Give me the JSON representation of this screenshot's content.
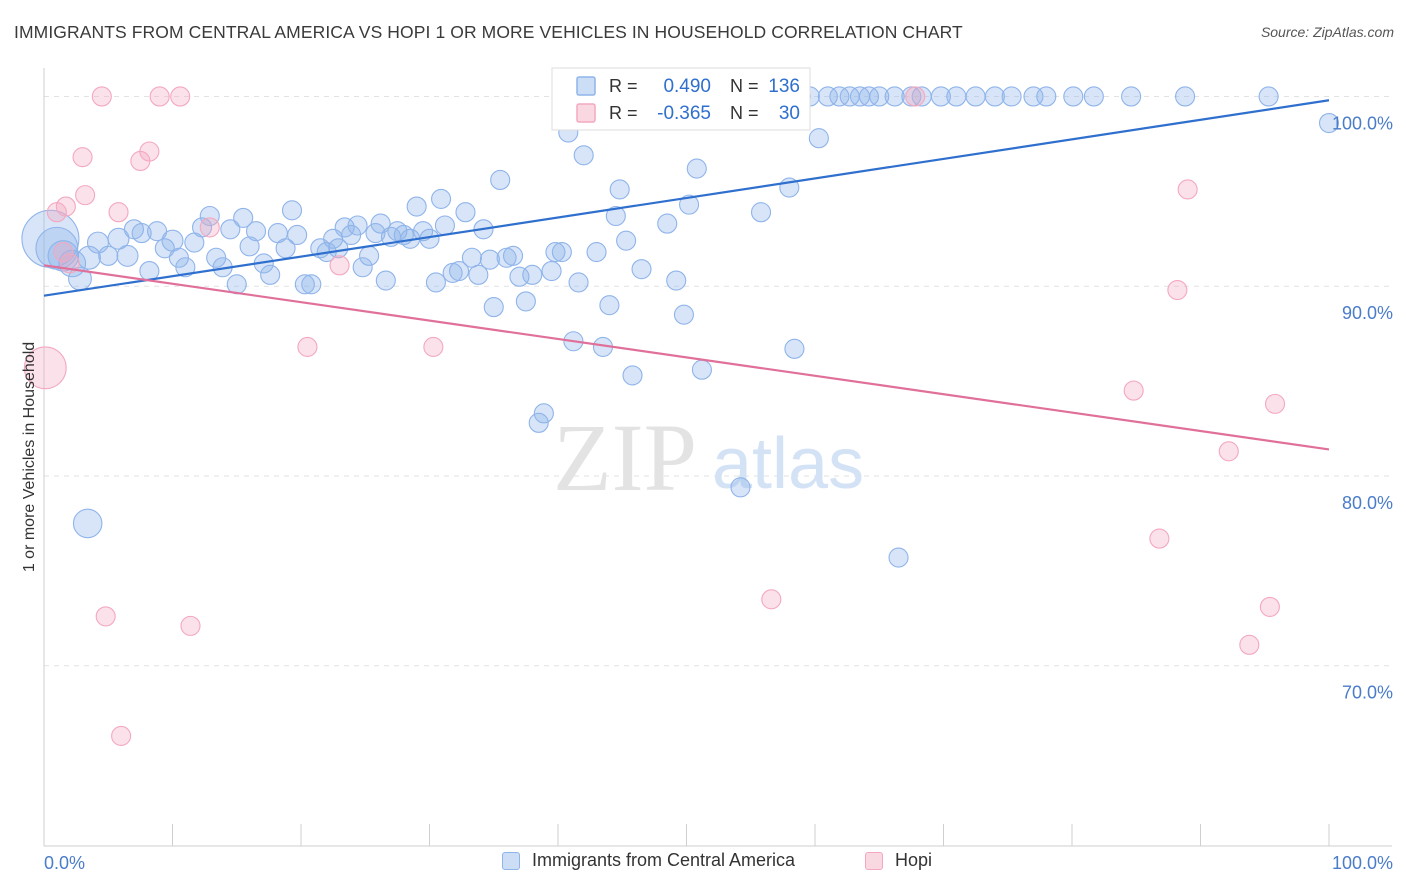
{
  "header": {
    "title": "IMMIGRANTS FROM CENTRAL AMERICA VS HOPI 1 OR MORE VEHICLES IN HOUSEHOLD CORRELATION CHART",
    "source": "Source: ZipAtlas.com"
  },
  "watermark": {
    "zip": "ZIP",
    "atlas": "atlas"
  },
  "stats_box": {
    "rows": [
      {
        "r_label": "R =",
        "r_value": "0.490",
        "n_label": "N =",
        "n_value": "136",
        "color": "#8fb4ea"
      },
      {
        "r_label": "R =",
        "r_value": "-0.365",
        "n_label": "N =",
        "n_value": "30",
        "color": "#f4a8bf"
      }
    ]
  },
  "legend": {
    "items": [
      {
        "label": "Immigrants from Central America",
        "color": "#8fb4ea"
      },
      {
        "label": "Hopi",
        "color": "#f4a8bf"
      }
    ]
  },
  "chart_data": {
    "type": "scatter",
    "xlabel": "",
    "ylabel": "1 or more Vehicles in Household",
    "xlim": [
      0,
      100
    ],
    "ylim": [
      60.5,
      101.5
    ],
    "x_tick_labels": [
      "0.0%",
      "100.0%"
    ],
    "y_ticks": [
      {
        "value": 70,
        "label": "70.0%"
      },
      {
        "value": 80,
        "label": "80.0%"
      },
      {
        "value": 90,
        "label": "90.0%"
      },
      {
        "value": 100,
        "label": "100.0%"
      }
    ],
    "grid": true,
    "series": [
      {
        "name": "Immigrants from Central America",
        "color": "#8fb4ea",
        "trend_color": "#2f6fce",
        "trend": {
          "x": [
            0,
            100
          ],
          "y": [
            89.5,
            99.8
          ]
        },
        "points": [
          [
            0.5,
            92.5,
            3
          ],
          [
            1.0,
            92.0,
            2.2
          ],
          [
            1.5,
            91.6,
            1.6
          ],
          [
            2.2,
            91.2,
            1.4
          ],
          [
            2.8,
            90.4,
            1.2
          ],
          [
            3.5,
            91.5,
            1.2
          ],
          [
            4.2,
            92.3,
            1.1
          ],
          [
            5.0,
            91.6,
            1.0
          ],
          [
            5.8,
            92.5,
            1.1
          ],
          [
            6.5,
            91.6,
            1.1
          ],
          [
            7.0,
            93.0,
            1.0
          ],
          [
            7.6,
            92.8,
            1.0
          ],
          [
            8.2,
            90.8,
            1.0
          ],
          [
            8.8,
            92.9,
            1.0
          ],
          [
            9.4,
            92.0,
            1.0
          ],
          [
            10.0,
            92.4,
            1.1
          ],
          [
            10.5,
            91.5,
            1.0
          ],
          [
            11.0,
            91.0,
            1.0
          ],
          [
            11.7,
            92.3,
            1.0
          ],
          [
            12.3,
            93.1,
            1.0
          ],
          [
            12.9,
            93.7,
            1.0
          ],
          [
            13.4,
            91.5,
            1.0
          ],
          [
            13.9,
            91.0,
            1.0
          ],
          [
            14.5,
            93.0,
            1.0
          ],
          [
            15.0,
            90.1,
            1.0
          ],
          [
            15.5,
            93.6,
            1.0
          ],
          [
            16.0,
            92.1,
            1.0
          ],
          [
            16.5,
            92.9,
            1.0
          ],
          [
            17.1,
            91.2,
            1.0
          ],
          [
            17.6,
            90.6,
            1.0
          ],
          [
            18.2,
            92.8,
            1.0
          ],
          [
            18.8,
            92.0,
            1.0
          ],
          [
            19.3,
            94.0,
            1.0
          ],
          [
            19.7,
            92.7,
            1.0
          ],
          [
            20.3,
            90.1,
            1.0
          ],
          [
            20.8,
            90.1,
            1.0
          ],
          [
            21.5,
            92.0,
            1.0
          ],
          [
            22.0,
            91.8,
            1.0
          ],
          [
            22.5,
            92.5,
            1.0
          ],
          [
            22.9,
            92.0,
            1.0
          ],
          [
            23.4,
            93.1,
            1.0
          ],
          [
            23.9,
            92.7,
            1.0
          ],
          [
            24.4,
            93.2,
            1.0
          ],
          [
            24.8,
            91.0,
            1.0
          ],
          [
            25.3,
            91.6,
            1.0
          ],
          [
            25.8,
            92.8,
            1.0
          ],
          [
            26.2,
            93.3,
            1.0
          ],
          [
            26.6,
            90.3,
            1.0
          ],
          [
            27.0,
            92.6,
            1.0
          ],
          [
            27.5,
            92.9,
            1.0
          ],
          [
            28.0,
            92.7,
            1.0
          ],
          [
            28.5,
            92.5,
            1.0
          ],
          [
            29.0,
            94.2,
            1.0
          ],
          [
            29.5,
            92.9,
            1.0
          ],
          [
            30.0,
            92.5,
            1.0
          ],
          [
            30.5,
            90.2,
            1.0
          ],
          [
            30.9,
            94.6,
            1.0
          ],
          [
            31.2,
            93.2,
            1.0
          ],
          [
            31.8,
            90.7,
            1.0
          ],
          [
            32.3,
            90.8,
            1.0
          ],
          [
            32.8,
            93.9,
            1.0
          ],
          [
            33.3,
            91.5,
            1.0
          ],
          [
            33.8,
            90.6,
            1.0
          ],
          [
            34.2,
            93.0,
            1.0
          ],
          [
            34.7,
            91.4,
            1.0
          ],
          [
            35.0,
            88.9,
            1.0
          ],
          [
            35.5,
            95.6,
            1.0
          ],
          [
            36.0,
            91.5,
            1.0
          ],
          [
            36.5,
            91.6,
            1.0
          ],
          [
            37.0,
            90.5,
            1.0
          ],
          [
            37.5,
            89.2,
            1.0
          ],
          [
            38.0,
            90.6,
            1.0
          ],
          [
            38.5,
            82.8,
            1.0
          ],
          [
            38.9,
            83.3,
            1.0
          ],
          [
            39.5,
            90.8,
            1.0
          ],
          [
            39.8,
            91.8,
            1.0
          ],
          [
            40.3,
            91.8,
            1.0
          ],
          [
            40.8,
            98.1,
            1.0
          ],
          [
            41.2,
            87.1,
            1.0
          ],
          [
            41.6,
            90.2,
            1.0
          ],
          [
            42.0,
            96.9,
            1.0
          ],
          [
            42.5,
            100.0,
            1.0
          ],
          [
            43.0,
            91.8,
            1.0
          ],
          [
            43.5,
            86.8,
            1.0
          ],
          [
            44.0,
            89.0,
            1.0
          ],
          [
            44.5,
            93.7,
            1.0
          ],
          [
            44.8,
            95.1,
            1.0
          ],
          [
            45.3,
            92.4,
            1.0
          ],
          [
            45.8,
            85.3,
            1.0
          ],
          [
            46.5,
            90.9,
            1.0
          ],
          [
            47.3,
            100.0,
            1.0
          ],
          [
            48.0,
            100.0,
            1.0
          ],
          [
            48.5,
            93.3,
            1.0
          ],
          [
            49.2,
            90.3,
            1.0
          ],
          [
            49.8,
            88.5,
            1.0
          ],
          [
            50.2,
            94.3,
            1.0
          ],
          [
            50.8,
            96.2,
            1.0
          ],
          [
            51.2,
            85.6,
            1.0
          ],
          [
            52.0,
            100.0,
            1.0
          ],
          [
            52.8,
            100.0,
            1.0
          ],
          [
            53.5,
            100.0,
            1.0
          ],
          [
            54.2,
            79.4,
            1.0
          ],
          [
            54.8,
            100.0,
            1.0
          ],
          [
            55.3,
            100.0,
            1.0
          ],
          [
            55.8,
            93.9,
            1.0
          ],
          [
            56.5,
            100.0,
            1.0
          ],
          [
            57.2,
            100.0,
            1.0
          ],
          [
            58.0,
            95.2,
            1.0
          ],
          [
            58.4,
            86.7,
            1.0
          ],
          [
            58.9,
            100.0,
            1.0
          ],
          [
            59.6,
            100.0,
            1.0
          ],
          [
            60.3,
            97.8,
            1.0
          ],
          [
            61.0,
            100.0,
            1.0
          ],
          [
            61.9,
            100.0,
            1.0
          ],
          [
            62.7,
            100.0,
            1.0
          ],
          [
            63.5,
            100.0,
            1.0
          ],
          [
            64.2,
            100.0,
            1.0
          ],
          [
            65.0,
            100.0,
            1.0
          ],
          [
            66.2,
            100.0,
            1.0
          ],
          [
            66.5,
            75.7,
            1.0
          ],
          [
            67.5,
            100.0,
            1.0
          ],
          [
            68.3,
            100.0,
            1.0
          ],
          [
            69.8,
            100.0,
            1.0
          ],
          [
            71.0,
            100.0,
            1.0
          ],
          [
            72.5,
            100.0,
            1.0
          ],
          [
            74.0,
            100.0,
            1.0
          ],
          [
            75.3,
            100.0,
            1.0
          ],
          [
            77.0,
            100.0,
            1.0
          ],
          [
            78.0,
            100.0,
            1.0
          ],
          [
            80.1,
            100.0,
            1.0
          ],
          [
            81.7,
            100.0,
            1.0
          ],
          [
            84.6,
            100.0,
            1.0
          ],
          [
            88.8,
            100.0,
            1.0
          ],
          [
            95.3,
            100.0,
            1.0
          ],
          [
            100.0,
            98.6,
            1.0
          ],
          [
            3.4,
            77.5,
            1.5
          ]
        ]
      },
      {
        "name": "Hopi",
        "color": "#f4a8bf",
        "trend_color": "#e0709a",
        "trend": {
          "x": [
            0,
            100
          ],
          "y": [
            91.1,
            81.4
          ]
        },
        "points": [
          [
            0.1,
            85.7,
            2.2
          ],
          [
            1.0,
            93.9,
            1.0
          ],
          [
            1.5,
            91.8,
            1.0
          ],
          [
            1.7,
            94.2,
            1.0
          ],
          [
            2.0,
            91.2,
            1.0
          ],
          [
            3.0,
            96.8,
            1.0
          ],
          [
            3.2,
            94.8,
            1.0
          ],
          [
            4.5,
            100.0,
            1.0
          ],
          [
            4.8,
            72.6,
            1.0
          ],
          [
            5.8,
            93.9,
            1.0
          ],
          [
            6.0,
            66.3,
            1.0
          ],
          [
            7.5,
            96.6,
            1.0
          ],
          [
            8.2,
            97.1,
            1.0
          ],
          [
            9.0,
            100.0,
            1.0
          ],
          [
            10.6,
            100.0,
            1.0
          ],
          [
            11.4,
            72.1,
            1.0
          ],
          [
            12.9,
            93.1,
            1.0
          ],
          [
            20.5,
            86.8,
            1.0
          ],
          [
            23.0,
            91.1,
            1.0
          ],
          [
            30.3,
            86.8,
            1.0
          ],
          [
            56.6,
            73.5,
            1.0
          ],
          [
            67.8,
            100.0,
            1.0
          ],
          [
            84.8,
            84.5,
            1.0
          ],
          [
            86.8,
            76.7,
            1.0
          ],
          [
            88.2,
            89.8,
            1.0
          ],
          [
            89.0,
            95.1,
            1.0
          ],
          [
            92.2,
            81.3,
            1.0
          ],
          [
            95.4,
            73.1,
            1.0
          ],
          [
            95.8,
            83.8,
            1.0
          ],
          [
            93.8,
            71.1,
            1.0
          ]
        ]
      }
    ]
  }
}
